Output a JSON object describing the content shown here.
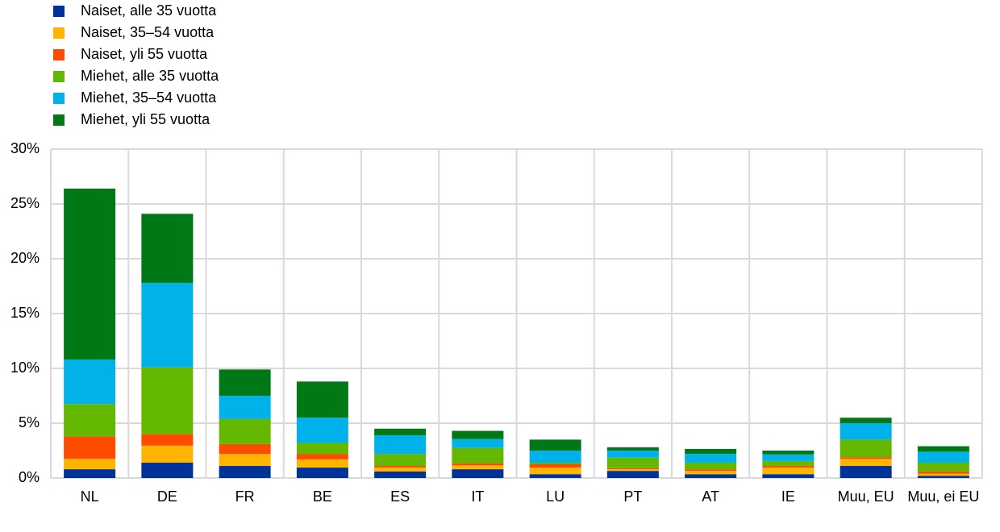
{
  "chart_data": {
    "type": "stacked_bar",
    "categories": [
      "NL",
      "DE",
      "FR",
      "BE",
      "ES",
      "IT",
      "LU",
      "PT",
      "AT",
      "IE",
      "Muu, EU",
      "Muu, ei EU"
    ],
    "series": [
      {
        "name": "Naiset, alle 35 vuotta",
        "color": "#003299",
        "values": [
          0.8,
          1.4,
          1.1,
          0.95,
          0.6,
          0.8,
          0.35,
          0.65,
          0.35,
          0.35,
          1.1,
          0.2
        ]
      },
      {
        "name": "Naiset, 35–54 vuotta",
        "color": "#ffb400",
        "values": [
          0.95,
          1.55,
          1.1,
          0.75,
          0.35,
          0.35,
          0.6,
          0.15,
          0.3,
          0.6,
          0.65,
          0.2
        ]
      },
      {
        "name": "Naiset, yli 55 vuotta",
        "color": "#ff4b00",
        "values": [
          2.05,
          1.05,
          0.9,
          0.5,
          0.15,
          0.2,
          0.3,
          0.1,
          0.15,
          0.15,
          0.15,
          0.2
        ]
      },
      {
        "name": "Miehet, alle 35 vuotta",
        "color": "#65b800",
        "values": [
          2.95,
          6.1,
          2.3,
          1.0,
          1.1,
          1.4,
          0.15,
          0.95,
          0.6,
          0.45,
          1.6,
          0.8
        ]
      },
      {
        "name": "Miehet, 35–54 vuotta",
        "color": "#00b1ea",
        "values": [
          4.05,
          7.7,
          2.1,
          2.3,
          1.7,
          0.8,
          1.1,
          0.65,
          0.8,
          0.6,
          1.5,
          1.0
        ]
      },
      {
        "name": "Miehet, yli 55 vuotta",
        "color": "#007816",
        "values": [
          15.6,
          6.3,
          2.4,
          3.3,
          0.6,
          0.75,
          1.0,
          0.3,
          0.45,
          0.35,
          0.5,
          0.5
        ]
      }
    ],
    "ylim": [
      0,
      30
    ],
    "yticks": [
      {
        "value": 0,
        "label": "0%"
      },
      {
        "value": 5,
        "label": "5%"
      },
      {
        "value": 10,
        "label": "10%"
      },
      {
        "value": 15,
        "label": "15%"
      },
      {
        "value": 20,
        "label": "20%"
      },
      {
        "value": 25,
        "label": "25%"
      },
      {
        "value": 30,
        "label": "30%"
      }
    ],
    "grid": true,
    "legend": "top-left"
  }
}
